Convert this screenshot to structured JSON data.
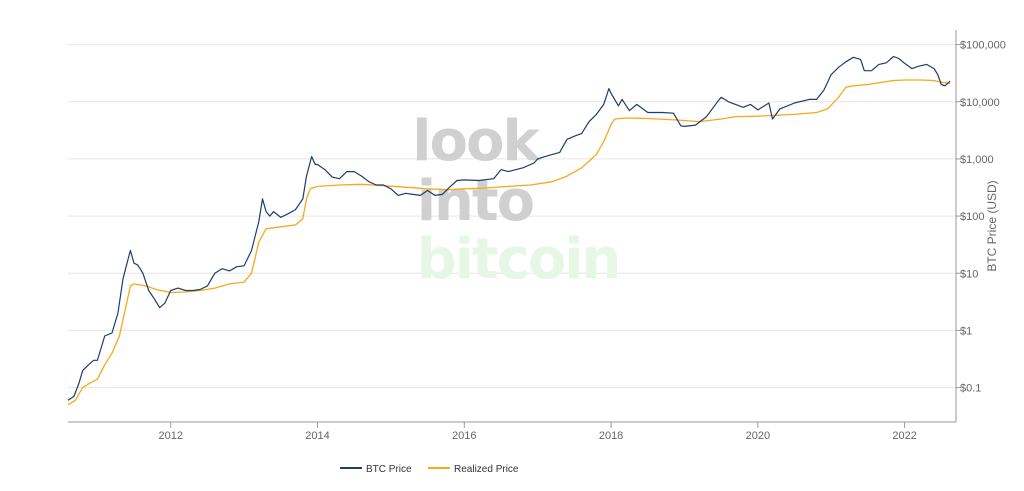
{
  "watermark": {
    "line1": "look",
    "line2": "into",
    "line3": "bitcoin"
  },
  "colors": {
    "btc": "#1f3d68",
    "realized": "#f7a81b",
    "grid": "#e6e6e6",
    "axis": "#999999",
    "wm_gray": "#d0d0d0",
    "wm_green": "#e6f7e6"
  },
  "chart_data": {
    "type": "line",
    "title": "",
    "xlabel": "",
    "ylabel": "BTC Price (USD)",
    "y_scale": "log",
    "ylim": [
      0.025,
      180000
    ],
    "xlim": [
      2010.6,
      2022.7
    ],
    "x_ticks": [
      {
        "value": 2012,
        "label": "2012"
      },
      {
        "value": 2014,
        "label": "2014"
      },
      {
        "value": 2016,
        "label": "2016"
      },
      {
        "value": 2018,
        "label": "2018"
      },
      {
        "value": 2020,
        "label": "2020"
      },
      {
        "value": 2022,
        "label": "2022"
      }
    ],
    "y_ticks": [
      {
        "value": 0.1,
        "label": "$0.1"
      },
      {
        "value": 1,
        "label": "$1"
      },
      {
        "value": 10,
        "label": "$10"
      },
      {
        "value": 100,
        "label": "$100"
      },
      {
        "value": 1000,
        "label": "$1,000"
      },
      {
        "value": 10000,
        "label": "$10,000"
      },
      {
        "value": 100000,
        "label": "$100,000"
      }
    ],
    "legend": {
      "position": "bottom-center",
      "entries": [
        "BTC Price",
        "Realized Price"
      ]
    },
    "series": [
      {
        "name": "BTC Price",
        "x": [
          2010.6,
          2010.68,
          2010.75,
          2010.8,
          2010.88,
          2010.95,
          2011.0,
          2011.1,
          2011.2,
          2011.28,
          2011.35,
          2011.42,
          2011.45,
          2011.5,
          2011.55,
          2011.62,
          2011.7,
          2011.78,
          2011.85,
          2011.92,
          2012.0,
          2012.1,
          2012.2,
          2012.3,
          2012.4,
          2012.5,
          2012.6,
          2012.7,
          2012.8,
          2012.9,
          2013.0,
          2013.1,
          2013.2,
          2013.25,
          2013.3,
          2013.35,
          2013.4,
          2013.5,
          2013.6,
          2013.7,
          2013.8,
          2013.85,
          2013.92,
          2013.97,
          2014.0,
          2014.1,
          2014.2,
          2014.3,
          2014.4,
          2014.5,
          2014.6,
          2014.7,
          2014.8,
          2014.9,
          2015.0,
          2015.1,
          2015.2,
          2015.3,
          2015.4,
          2015.5,
          2015.6,
          2015.7,
          2015.8,
          2015.9,
          2016.0,
          2016.2,
          2016.4,
          2016.5,
          2016.6,
          2016.8,
          2016.95,
          2017.0,
          2017.1,
          2017.2,
          2017.3,
          2017.4,
          2017.5,
          2017.6,
          2017.7,
          2017.8,
          2017.9,
          2017.97,
          2018.0,
          2018.1,
          2018.15,
          2018.25,
          2018.35,
          2018.5,
          2018.7,
          2018.85,
          2018.95,
          2019.0,
          2019.15,
          2019.3,
          2019.45,
          2019.5,
          2019.6,
          2019.8,
          2019.9,
          2020.0,
          2020.15,
          2020.2,
          2020.3,
          2020.5,
          2020.7,
          2020.8,
          2020.9,
          2021.0,
          2021.1,
          2021.2,
          2021.3,
          2021.4,
          2021.45,
          2021.55,
          2021.65,
          2021.75,
          2021.85,
          2021.92,
          2022.0,
          2022.1,
          2022.2,
          2022.3,
          2022.4,
          2022.45,
          2022.5,
          2022.55,
          2022.62
        ],
        "values": [
          0.06,
          0.07,
          0.12,
          0.2,
          0.25,
          0.3,
          0.3,
          0.8,
          0.9,
          2.0,
          8.0,
          18.0,
          25.0,
          15.0,
          14.0,
          10.0,
          5.0,
          3.5,
          2.5,
          3.0,
          5.0,
          5.5,
          5.0,
          5.0,
          5.2,
          6.0,
          10.0,
          12.0,
          11.0,
          13.0,
          13.5,
          25.0,
          80.0,
          200.0,
          120.0,
          100.0,
          120.0,
          95.0,
          110.0,
          130.0,
          200.0,
          500.0,
          1100.0,
          800.0,
          800.0,
          650.0,
          480.0,
          450.0,
          600.0,
          600.0,
          500.0,
          400.0,
          350.0,
          350.0,
          300.0,
          230.0,
          250.0,
          240.0,
          230.0,
          280.0,
          230.0,
          240.0,
          320.0,
          420.0,
          430.0,
          420.0,
          450.0,
          650.0,
          600.0,
          700.0,
          850.0,
          1000.0,
          1100.0,
          1200.0,
          1300.0,
          2200.0,
          2500.0,
          2800.0,
          4500.0,
          6000.0,
          9000.0,
          17000.0,
          14000.0,
          8500.0,
          11000.0,
          7000.0,
          9000.0,
          6500.0,
          6500.0,
          6300.0,
          3800.0,
          3700.0,
          3900.0,
          5500.0,
          10000.0,
          12000.0,
          10000.0,
          8000.0,
          9000.0,
          7200.0,
          9500.0,
          5000.0,
          7500.0,
          9500.0,
          11000.0,
          11000.0,
          16000.0,
          30000.0,
          40000.0,
          50000.0,
          60000.0,
          55000.0,
          35000.0,
          35000.0,
          45000.0,
          48000.0,
          62000.0,
          57000.0,
          47000.0,
          38000.0,
          42000.0,
          45000.0,
          38000.0,
          30000.0,
          20000.0,
          19000.0,
          23000.0
        ]
      },
      {
        "name": "Realized Price",
        "x": [
          2010.6,
          2010.7,
          2010.8,
          2010.9,
          2011.0,
          2011.1,
          2011.2,
          2011.3,
          2011.4,
          2011.45,
          2011.5,
          2011.6,
          2011.7,
          2011.8,
          2011.9,
          2012.0,
          2012.2,
          2012.4,
          2012.6,
          2012.8,
          2013.0,
          2013.1,
          2013.2,
          2013.3,
          2013.5,
          2013.7,
          2013.8,
          2013.85,
          2013.9,
          2014.0,
          2014.3,
          2014.6,
          2014.9,
          2015.2,
          2015.5,
          2015.8,
          2016.0,
          2016.3,
          2016.6,
          2016.9,
          2017.2,
          2017.4,
          2017.6,
          2017.8,
          2017.9,
          2018.0,
          2018.05,
          2018.2,
          2018.5,
          2018.9,
          2019.2,
          2019.5,
          2019.7,
          2020.0,
          2020.5,
          2020.8,
          2020.95,
          2021.1,
          2021.2,
          2021.3,
          2021.5,
          2021.7,
          2021.85,
          2022.0,
          2022.2,
          2022.4,
          2022.5,
          2022.62
        ],
        "values": [
          0.05,
          0.06,
          0.1,
          0.12,
          0.14,
          0.25,
          0.4,
          0.8,
          3.0,
          6.0,
          6.5,
          6.2,
          5.8,
          5.2,
          4.9,
          4.6,
          4.7,
          5.0,
          5.5,
          6.5,
          7.0,
          10.0,
          35.0,
          60.0,
          65.0,
          70.0,
          90.0,
          200.0,
          300.0,
          330.0,
          350.0,
          360.0,
          340.0,
          320.0,
          300.0,
          290.0,
          300.0,
          310.0,
          330.0,
          350.0,
          400.0,
          500.0,
          700.0,
          1200.0,
          2000.0,
          4000.0,
          5000.0,
          5200.0,
          5100.0,
          4800.0,
          4500.0,
          5000.0,
          5500.0,
          5600.0,
          6000.0,
          6500.0,
          7500.0,
          12000.0,
          18000.0,
          19000.0,
          20000.0,
          22000.0,
          23500.0,
          24000.0,
          24000.0,
          23500.0,
          22000.0,
          21000.0
        ]
      }
    ]
  }
}
